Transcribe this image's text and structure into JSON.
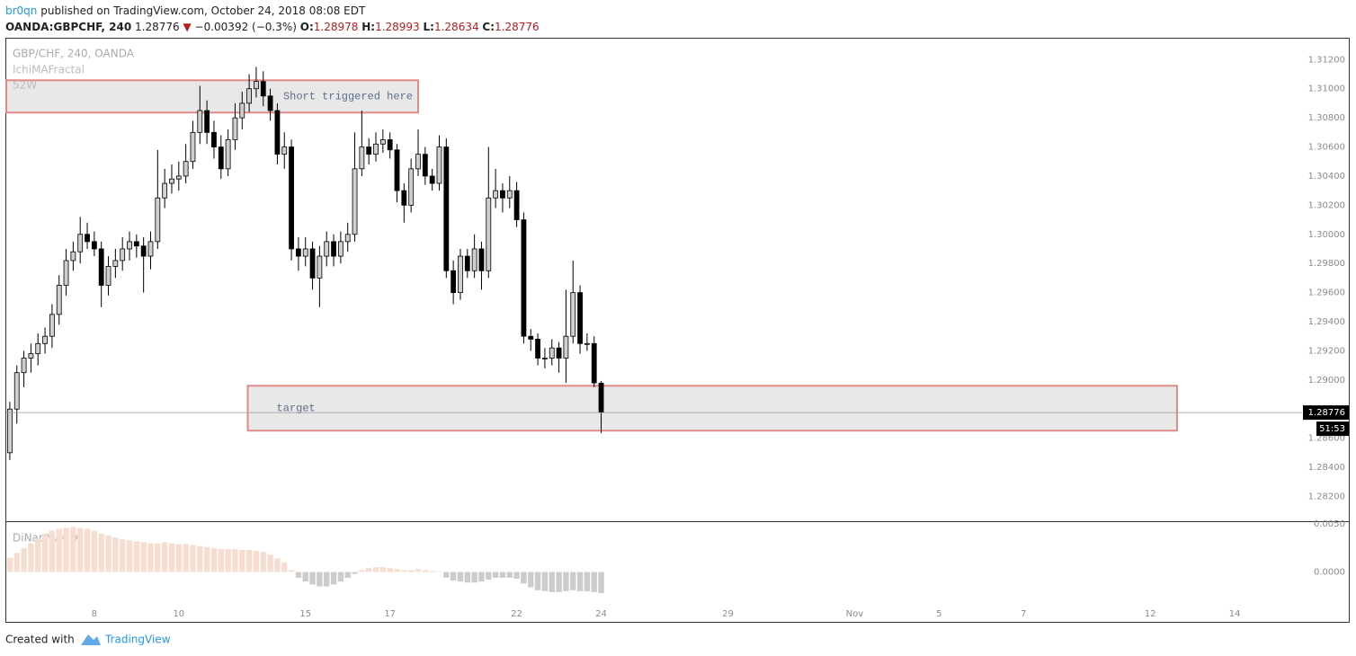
{
  "header": {
    "author": "br0qn",
    "published": "published on TradingView.com, October 24, 2018 08:08 EDT",
    "symbol": "OANDA:GBPCHF, 240",
    "last": "1.28776",
    "change": "−0.00392 (−0.3%)",
    "ohlc": [
      {
        "label": "O:",
        "value": "1.28978"
      },
      {
        "label": "H:",
        "value": "1.28993"
      },
      {
        "label": "L:",
        "value": "1.28634"
      },
      {
        "label": "C:",
        "value": "1.28776"
      }
    ]
  },
  "chart_data": [
    {
      "type": "candlestick",
      "title": "GBP/CHF, 240, OANDA",
      "indicators": [
        "IchiMAFractal",
        "52W"
      ],
      "up_color": "#cfcfcf",
      "down_color": "#000000",
      "x": [
        0,
        1,
        2,
        3,
        4,
        5,
        6,
        7,
        8,
        9,
        10,
        11,
        12,
        13,
        14,
        15,
        16,
        17,
        18,
        19,
        20,
        21,
        22,
        23,
        24,
        25,
        26,
        27,
        28,
        29,
        30,
        31,
        32,
        33,
        34,
        35,
        36,
        37,
        38,
        39,
        40,
        41,
        42,
        43,
        44,
        45,
        46,
        47,
        48,
        49,
        50,
        51,
        52,
        53,
        54,
        55,
        56,
        57,
        58,
        59,
        60,
        61,
        62,
        63,
        64,
        65,
        66,
        67,
        68,
        69,
        70,
        71,
        72,
        73,
        74,
        75,
        76,
        77,
        78,
        79,
        80,
        81,
        82,
        83,
        84
      ],
      "open": [
        1.285,
        1.288,
        1.2905,
        1.2915,
        1.2918,
        1.2925,
        1.293,
        1.2945,
        1.2965,
        1.2982,
        1.2988,
        1.3,
        1.2995,
        1.299,
        1.2965,
        1.2978,
        1.2982,
        1.299,
        1.2995,
        1.2992,
        1.2985,
        1.2995,
        1.3025,
        1.3035,
        1.3038,
        1.304,
        1.305,
        1.307,
        1.3085,
        1.307,
        1.306,
        1.3045,
        1.3065,
        1.308,
        1.309,
        1.31,
        1.3105,
        1.3095,
        1.3085,
        1.3055,
        1.306,
        1.299,
        1.2985,
        1.299,
        1.297,
        1.2985,
        1.2995,
        1.2985,
        1.2995,
        1.3,
        1.3045,
        1.306,
        1.3055,
        1.3062,
        1.3065,
        1.3058,
        1.303,
        1.302,
        1.3045,
        1.3055,
        1.304,
        1.3035,
        1.306,
        1.2975,
        1.296,
        1.2985,
        1.2975,
        1.299,
        1.2975,
        1.3025,
        1.303,
        1.3025,
        1.303,
        1.301,
        1.293,
        1.2928,
        1.2915,
        1.2915,
        1.2922,
        1.2915,
        1.293,
        1.296,
        1.2925,
        1.2925,
        1.28978
      ],
      "high": [
        1.2885,
        1.291,
        1.292,
        1.2925,
        1.2932,
        1.2936,
        1.2952,
        1.2972,
        1.299,
        1.2995,
        1.3012,
        1.3008,
        1.3002,
        1.2995,
        1.2985,
        1.299,
        1.2998,
        1.3002,
        1.3,
        1.2998,
        1.3002,
        1.3058,
        1.3045,
        1.3048,
        1.305,
        1.3062,
        1.3078,
        1.3102,
        1.3092,
        1.3078,
        1.3068,
        1.3072,
        1.309,
        1.3098,
        1.311,
        1.3115,
        1.3112,
        1.31,
        1.309,
        1.307,
        1.3065,
        1.2998,
        1.2998,
        1.2995,
        1.2992,
        1.3002,
        1.3,
        1.3002,
        1.3008,
        1.307,
        1.3085,
        1.3066,
        1.307,
        1.3072,
        1.307,
        1.3062,
        1.3035,
        1.3052,
        1.3072,
        1.306,
        1.3045,
        1.3068,
        1.3066,
        1.2982,
        1.299,
        1.299,
        1.3,
        1.2995,
        1.306,
        1.3045,
        1.3035,
        1.304,
        1.3036,
        1.3015,
        1.2935,
        1.2932,
        1.2922,
        1.2928,
        1.2926,
        1.2962,
        1.2982,
        1.2965,
        1.2932,
        1.293,
        1.28993
      ],
      "low": [
        1.2845,
        1.287,
        1.2895,
        1.2905,
        1.291,
        1.2918,
        1.2922,
        1.2938,
        1.2958,
        1.2975,
        1.298,
        1.299,
        1.2985,
        1.295,
        1.2958,
        1.297,
        1.2975,
        1.2982,
        1.2984,
        1.296,
        1.2976,
        1.299,
        1.3018,
        1.3028,
        1.303,
        1.3035,
        1.3045,
        1.3062,
        1.3062,
        1.3052,
        1.3038,
        1.304,
        1.3058,
        1.3072,
        1.3084,
        1.3094,
        1.3088,
        1.3078,
        1.3048,
        1.3045,
        1.2982,
        1.2975,
        1.2978,
        1.2962,
        1.295,
        1.2978,
        1.2978,
        1.298,
        1.2988,
        1.2995,
        1.304,
        1.3048,
        1.305,
        1.3056,
        1.3052,
        1.3022,
        1.3008,
        1.3015,
        1.304,
        1.3034,
        1.303,
        1.303,
        1.297,
        1.2952,
        1.2955,
        1.297,
        1.297,
        1.2962,
        1.297,
        1.3018,
        1.3015,
        1.3018,
        1.3005,
        1.2925,
        1.292,
        1.291,
        1.2908,
        1.291,
        1.2905,
        1.2898,
        1.2925,
        1.2918,
        1.292,
        1.2895,
        1.28634
      ],
      "close": [
        1.288,
        1.2905,
        1.2915,
        1.2918,
        1.2925,
        1.293,
        1.2945,
        1.2965,
        1.2982,
        1.2988,
        1.3,
        1.2995,
        1.299,
        1.2965,
        1.2978,
        1.2982,
        1.299,
        1.2995,
        1.2992,
        1.2985,
        1.2995,
        1.3025,
        1.3035,
        1.3038,
        1.304,
        1.305,
        1.307,
        1.3085,
        1.307,
        1.306,
        1.3045,
        1.3065,
        1.308,
        1.309,
        1.31,
        1.3105,
        1.3095,
        1.3085,
        1.3055,
        1.306,
        1.299,
        1.2985,
        1.299,
        1.297,
        1.2985,
        1.2995,
        1.2985,
        1.2995,
        1.3,
        1.3045,
        1.306,
        1.3055,
        1.3062,
        1.3065,
        1.3058,
        1.303,
        1.302,
        1.3045,
        1.3055,
        1.304,
        1.3035,
        1.306,
        1.2975,
        1.296,
        1.2985,
        1.2975,
        1.299,
        1.2975,
        1.3025,
        1.303,
        1.3025,
        1.303,
        1.301,
        1.293,
        1.2928,
        1.2915,
        1.2915,
        1.2922,
        1.2915,
        1.293,
        1.296,
        1.2925,
        1.2925,
        1.2898,
        1.28776
      ],
      "xlim": [
        -0.5,
        190.2
      ],
      "xticks": [
        {
          "value": 12,
          "label": "8"
        },
        {
          "value": 24,
          "label": "10"
        },
        {
          "value": 42,
          "label": "15"
        },
        {
          "value": 54,
          "label": "17"
        },
        {
          "value": 72,
          "label": "22"
        },
        {
          "value": 84,
          "label": "24"
        },
        {
          "value": 102,
          "label": "29"
        },
        {
          "value": 120,
          "label": "Nov"
        },
        {
          "value": 132,
          "label": "5"
        },
        {
          "value": 144,
          "label": "7"
        },
        {
          "value": 162,
          "label": "12"
        },
        {
          "value": 174,
          "label": "14"
        }
      ],
      "ylim": [
        1.2803,
        1.3135
      ],
      "yticks": [
        {
          "value": 1.282,
          "label": "1.28200"
        },
        {
          "value": 1.284,
          "label": "1.28400"
        },
        {
          "value": 1.286,
          "label": "1.28600"
        },
        {
          "value": 1.288,
          "label": "1.28800"
        },
        {
          "value": 1.29,
          "label": "1.29000"
        },
        {
          "value": 1.292,
          "label": "1.29200"
        },
        {
          "value": 1.294,
          "label": "1.29400"
        },
        {
          "value": 1.296,
          "label": "1.29600"
        },
        {
          "value": 1.298,
          "label": "1.29800"
        },
        {
          "value": 1.3,
          "label": "1.30000"
        },
        {
          "value": 1.302,
          "label": "1.30200"
        },
        {
          "value": 1.304,
          "label": "1.30400"
        },
        {
          "value": 1.306,
          "label": "1.30600"
        },
        {
          "value": 1.308,
          "label": "1.30800"
        },
        {
          "value": 1.31,
          "label": "1.31000"
        },
        {
          "value": 1.312,
          "label": "1.31200"
        }
      ],
      "annotations": [
        {
          "text": "Short triggered here",
          "x": [
            -0.5,
            58
          ],
          "y": [
            1.30836,
            1.31058
          ]
        },
        {
          "text": "target",
          "x": [
            33.8,
            165.8
          ],
          "y": [
            1.28652,
            1.2896
          ]
        }
      ],
      "last_price": 1.28776,
      "countdown": "51:53"
    },
    {
      "type": "bar",
      "title": "DiNapMACD",
      "up_color": "#f6ddd0",
      "down_color": "#cccccc",
      "x": [
        0,
        1,
        2,
        3,
        4,
        5,
        6,
        7,
        8,
        9,
        10,
        11,
        12,
        13,
        14,
        15,
        16,
        17,
        18,
        19,
        20,
        21,
        22,
        23,
        24,
        25,
        26,
        27,
        28,
        29,
        30,
        31,
        32,
        33,
        34,
        35,
        36,
        37,
        38,
        39,
        40,
        41,
        42,
        43,
        44,
        45,
        46,
        47,
        48,
        49,
        50,
        51,
        52,
        53,
        54,
        55,
        56,
        57,
        58,
        59,
        60,
        61,
        62,
        63,
        64,
        65,
        66,
        67,
        68,
        69,
        70,
        71,
        72,
        73,
        74,
        75,
        76,
        77,
        78,
        79,
        80,
        81,
        82,
        83,
        84
      ],
      "values": [
        0.0015,
        0.002,
        0.0025,
        0.003,
        0.0035,
        0.004,
        0.0043,
        0.0045,
        0.0046,
        0.0047,
        0.0046,
        0.0045,
        0.0043,
        0.004,
        0.0038,
        0.0036,
        0.0034,
        0.0033,
        0.0032,
        0.0031,
        0.003,
        0.003,
        0.0031,
        0.003,
        0.0029,
        0.0029,
        0.0028,
        0.0027,
        0.0026,
        0.0025,
        0.0024,
        0.0024,
        0.0024,
        0.0023,
        0.0023,
        0.0022,
        0.0021,
        0.0018,
        0.0014,
        0.001,
        0.0002,
        -0.0006,
        -0.001,
        -0.0013,
        -0.0015,
        -0.0015,
        -0.0013,
        -0.001,
        -0.0006,
        -0.0002,
        0.0002,
        0.0004,
        0.0005,
        0.0005,
        0.0004,
        0.0003,
        0.0002,
        0.0002,
        0.0003,
        0.0002,
        0.0001,
        0,
        -0.0006,
        -0.0009,
        -0.001,
        -0.0011,
        -0.0011,
        -0.001,
        -0.0008,
        -0.0006,
        -0.0006,
        -0.0006,
        -0.0007,
        -0.0012,
        -0.0016,
        -0.0019,
        -0.002,
        -0.0021,
        -0.0021,
        -0.002,
        -0.0019,
        -0.002,
        -0.002,
        -0.0021,
        -0.0022
      ],
      "xlim": [
        -0.5,
        190.2
      ],
      "ylim": [
        -0.0052,
        0.0052
      ],
      "yticks": [
        {
          "value": 0,
          "label": "0.0000"
        },
        {
          "value": 0.005,
          "label": "0.0050"
        }
      ]
    }
  ],
  "footer": {
    "text": "Created with",
    "brand": "TradingView"
  }
}
